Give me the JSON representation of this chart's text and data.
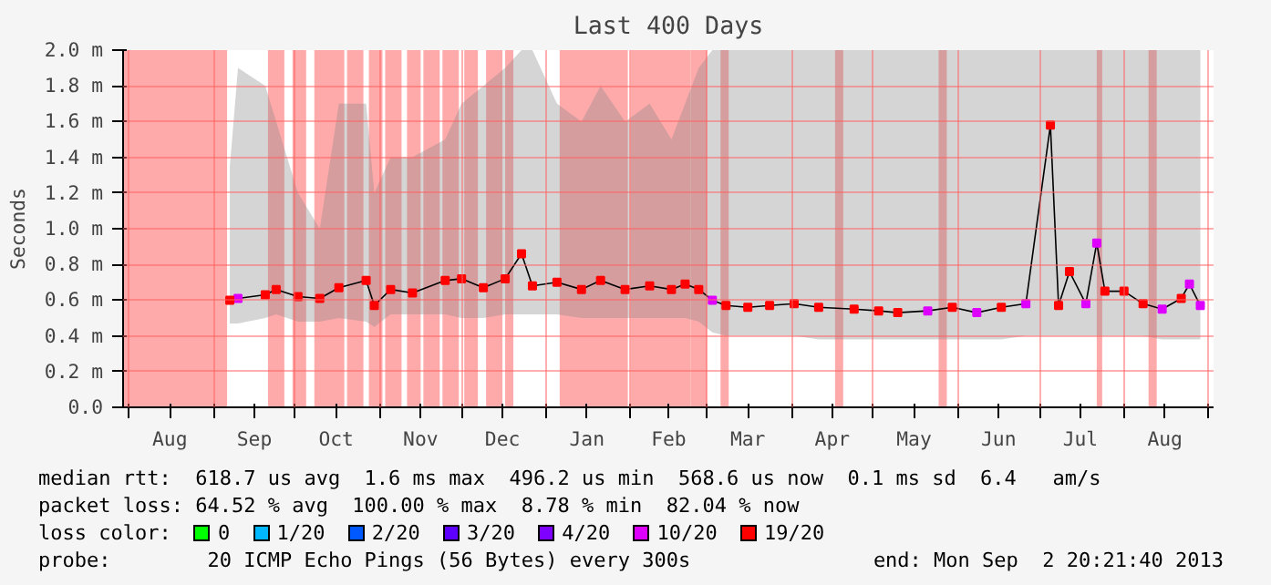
{
  "chart_data": {
    "type": "line",
    "title": "Last 400 Days",
    "ylabel": "Seconds",
    "legend_title": "loss color:",
    "legend": "bottom",
    "grid": true,
    "marker": "none",
    "line_style": "solid",
    "xlim": [
      "2012-07-29T20:21",
      "2013-09-02T20:21"
    ],
    "xticks": [
      {
        "value": "2012-08-01",
        "label": null
      },
      {
        "value": "2012-08-16",
        "label": "Aug"
      },
      {
        "value": "2012-09-01",
        "label": null
      },
      {
        "value": "2012-09-16",
        "label": "Sep"
      },
      {
        "value": "2012-10-01",
        "label": null
      },
      {
        "value": "2012-10-16",
        "label": "Oct"
      },
      {
        "value": "2012-11-01",
        "label": null
      },
      {
        "value": "2012-11-16",
        "label": "Nov"
      },
      {
        "value": "2012-12-01",
        "label": null
      },
      {
        "value": "2012-12-16",
        "label": "Dec"
      },
      {
        "value": "2013-01-01",
        "label": null
      },
      {
        "value": "2013-01-16",
        "label": "Jan"
      },
      {
        "value": "2013-02-01",
        "label": null
      },
      {
        "value": "2013-02-15",
        "label": "Feb"
      },
      {
        "value": "2013-03-01",
        "label": null
      },
      {
        "value": "2013-03-16",
        "label": "Mar"
      },
      {
        "value": "2013-04-01",
        "label": null
      },
      {
        "value": "2013-04-16",
        "label": "Apr"
      },
      {
        "value": "2013-05-01",
        "label": null
      },
      {
        "value": "2013-05-16",
        "label": "May"
      },
      {
        "value": "2013-06-01",
        "label": null
      },
      {
        "value": "2013-06-16",
        "label": "Jun"
      },
      {
        "value": "2013-07-01",
        "label": null
      },
      {
        "value": "2013-07-16",
        "label": "Jul"
      },
      {
        "value": "2013-08-01",
        "label": null
      },
      {
        "value": "2013-08-16",
        "label": "Aug"
      },
      {
        "value": "2013-09-01",
        "label": null
      }
    ],
    "ylim": [
      0,
      2.0
    ],
    "yticks": [
      {
        "value": 0,
        "label": "0.0"
      },
      {
        "value": 0.2,
        "label": "0.2 m"
      },
      {
        "value": 0.4,
        "label": "0.4 m"
      },
      {
        "value": 0.6,
        "label": "0.6 m"
      },
      {
        "value": 0.8,
        "label": "0.8 m"
      },
      {
        "value": 1.0,
        "label": "1.0 m"
      },
      {
        "value": 1.2,
        "label": "1.2 m"
      },
      {
        "value": 1.4,
        "label": "1.4 m"
      },
      {
        "value": 1.6,
        "label": "1.6 m"
      },
      {
        "value": 1.8,
        "label": "1.8 m"
      },
      {
        "value": 2.0,
        "label": "2.0 m"
      }
    ],
    "bands": [
      {
        "axis": "x",
        "from": "2012-07-29T20:21",
        "to": "2012-09-06",
        "color": "#ffaaaa"
      },
      {
        "axis": "x",
        "from": "2012-09-21",
        "to": "2012-09-27",
        "color": "#ffaaaa"
      },
      {
        "axis": "x",
        "from": "2012-09-30",
        "to": "2012-10-05",
        "color": "#ffaaaa"
      },
      {
        "axis": "x",
        "from": "2012-10-08",
        "to": "2012-10-19",
        "color": "#ffaaaa"
      },
      {
        "axis": "x",
        "from": "2012-10-20",
        "to": "2012-10-26",
        "color": "#ffaaaa"
      },
      {
        "axis": "x",
        "from": "2012-10-28",
        "to": "2012-11-02",
        "color": "#ffaaaa"
      },
      {
        "axis": "x",
        "from": "2012-11-03",
        "to": "2012-11-09",
        "color": "#ffaaaa"
      },
      {
        "axis": "x",
        "from": "2012-11-11",
        "to": "2012-11-16",
        "color": "#ffaaaa"
      },
      {
        "axis": "x",
        "from": "2012-11-17",
        "to": "2012-11-23",
        "color": "#ffaaaa"
      },
      {
        "axis": "x",
        "from": "2012-11-24",
        "to": "2012-11-30",
        "color": "#ffaaaa"
      },
      {
        "axis": "x",
        "from": "2012-12-02",
        "to": "2012-12-07",
        "color": "#ffaaaa"
      },
      {
        "axis": "x",
        "from": "2012-12-10",
        "to": "2012-12-16",
        "color": "#ffaaaa"
      },
      {
        "axis": "x",
        "from": "2012-12-17",
        "to": "2012-12-20",
        "color": "#ffaaaa"
      },
      {
        "axis": "x",
        "from": "2013-01-06",
        "to": "2013-01-31",
        "color": "#ffaaaa"
      },
      {
        "axis": "x",
        "from": "2013-02-01",
        "to": "2013-02-23",
        "color": "#ffaaaa"
      },
      {
        "axis": "x",
        "from": "2013-02-23",
        "to": "2013-03-01",
        "color": "#ffaaaa"
      },
      {
        "axis": "x",
        "from": "2013-03-06",
        "to": "2013-03-09",
        "color": "#ffaaaa"
      },
      {
        "axis": "x",
        "from": "2013-04-17",
        "to": "2013-04-20",
        "color": "#ffaaaa"
      },
      {
        "axis": "x",
        "from": "2013-05-25",
        "to": "2013-05-28",
        "color": "#ffaaaa"
      },
      {
        "axis": "x",
        "from": "2013-07-22",
        "to": "2013-07-24",
        "color": "#ffaaaa"
      },
      {
        "axis": "x",
        "from": "2013-08-10",
        "to": "2013-08-13",
        "color": "#ffaaaa"
      }
    ],
    "series": [
      {
        "color": "#000000",
        "x": [
          "2012-09-07",
          "2012-09-10",
          "2012-09-20",
          "2012-09-24",
          "2012-10-02",
          "2012-10-10",
          "2012-10-17",
          "2012-10-27",
          "2012-10-30",
          "2012-11-05",
          "2012-11-13",
          "2012-11-25",
          "2012-12-01",
          "2012-12-09",
          "2012-12-17",
          "2012-12-23",
          "2012-12-27",
          "2013-01-05",
          "2013-01-14",
          "2013-01-21",
          "2013-01-30",
          "2013-02-08",
          "2013-02-16",
          "2013-02-21",
          "2013-02-26",
          "2013-03-03",
          "2013-03-08",
          "2013-03-16",
          "2013-03-24",
          "2013-04-02",
          "2013-04-11",
          "2013-04-24",
          "2013-05-03",
          "2013-05-10",
          "2013-05-21",
          "2013-05-30",
          "2013-06-08",
          "2013-06-17",
          "2013-06-26",
          "2013-07-05",
          "2013-07-08",
          "2013-07-12",
          "2013-07-18",
          "2013-07-22",
          "2013-07-25",
          "2013-08-01",
          "2013-08-08",
          "2013-08-15",
          "2013-08-22",
          "2013-08-25",
          "2013-08-29"
        ],
        "values": [
          0.6,
          0.61,
          0.63,
          0.66,
          0.62,
          0.61,
          0.67,
          0.71,
          0.57,
          0.66,
          0.64,
          0.71,
          0.72,
          0.67,
          0.72,
          0.86,
          0.68,
          0.7,
          0.66,
          0.71,
          0.66,
          0.68,
          0.66,
          0.69,
          0.66,
          0.6,
          0.57,
          0.56,
          0.57,
          0.58,
          0.56,
          0.55,
          0.54,
          0.53,
          0.54,
          0.56,
          0.53,
          0.56,
          0.58,
          1.58,
          0.57,
          0.76,
          0.58,
          0.92,
          0.65,
          0.65,
          0.58,
          0.55,
          0.61,
          0.69,
          0.57
        ],
        "lower": [
          0.47,
          0.47,
          0.5,
          0.52,
          0.48,
          0.48,
          0.5,
          0.48,
          0.45,
          0.52,
          0.52,
          0.52,
          0.5,
          0.5,
          0.52,
          0.52,
          0.52,
          0.52,
          0.5,
          0.5,
          0.5,
          0.5,
          0.5,
          0.5,
          0.48,
          0.42,
          0.4,
          0.4,
          0.4,
          0.4,
          0.38,
          0.38,
          0.38,
          0.38,
          0.38,
          0.38,
          0.38,
          0.38,
          0.4,
          0.4,
          0.4,
          0.4,
          0.4,
          0.4,
          0.4,
          0.4,
          0.4,
          0.38,
          0.38,
          0.38,
          0.38
        ],
        "upper": [
          1.35,
          1.9,
          1.8,
          1.6,
          1.2,
          1.0,
          1.7,
          1.7,
          1.2,
          1.4,
          1.4,
          1.5,
          1.7,
          1.8,
          1.9,
          2.0,
          2.0,
          1.7,
          1.6,
          1.8,
          1.6,
          1.7,
          1.5,
          1.7,
          1.9,
          2.0,
          2.0,
          2.0,
          2.0,
          2.0,
          2.0,
          2.0,
          2.0,
          2.0,
          2.0,
          2.0,
          2.0,
          2.0,
          2.0,
          2.0,
          2.0,
          2.0,
          2.0,
          2.0,
          2.0,
          2.0,
          2.0,
          2.0,
          2.0,
          2.0,
          2.0
        ]
      },
      {
        "type": "scatter",
        "name": "0",
        "color": "#00ff00"
      },
      {
        "type": "scatter",
        "name": "1/20",
        "color": "#00b8ff"
      },
      {
        "type": "scatter",
        "name": "2/20",
        "color": "#0059ff"
      },
      {
        "type": "scatter",
        "name": "3/20",
        "color": "#5e00ff"
      },
      {
        "type": "scatter",
        "name": "4/20",
        "color": "#7e00ff"
      },
      {
        "type": "scatter",
        "name": "10/20",
        "color": "#dd00ff",
        "marker": "square",
        "x": [
          "2012-09-10",
          "2013-03-03",
          "2013-05-21",
          "2013-06-08",
          "2013-06-26",
          "2013-07-18",
          "2013-07-22",
          "2013-08-15",
          "2013-08-25",
          "2013-08-29"
        ],
        "values": [
          0.61,
          0.6,
          0.54,
          0.53,
          0.58,
          0.58,
          0.92,
          0.55,
          0.69,
          0.57
        ]
      },
      {
        "type": "scatter",
        "name": "19/20",
        "color": "#ff0000",
        "marker": "square",
        "x": [
          "2012-09-07",
          "2012-09-20",
          "2012-09-24",
          "2012-10-02",
          "2012-10-10",
          "2012-10-17",
          "2012-10-27",
          "2012-10-30",
          "2012-11-05",
          "2012-11-13",
          "2012-11-25",
          "2012-12-01",
          "2012-12-09",
          "2012-12-17",
          "2012-12-23",
          "2012-12-27",
          "2013-01-05",
          "2013-01-14",
          "2013-01-21",
          "2013-01-30",
          "2013-02-08",
          "2013-02-16",
          "2013-02-21",
          "2013-02-26",
          "2013-03-08",
          "2013-03-16",
          "2013-03-24",
          "2013-04-02",
          "2013-04-11",
          "2013-04-24",
          "2013-05-03",
          "2013-05-10",
          "2013-05-30",
          "2013-06-17",
          "2013-07-05",
          "2013-07-08",
          "2013-07-12",
          "2013-07-25",
          "2013-08-01",
          "2013-08-08",
          "2013-08-22"
        ],
        "values": [
          0.6,
          0.63,
          0.66,
          0.62,
          0.61,
          0.67,
          0.71,
          0.57,
          0.66,
          0.64,
          0.71,
          0.72,
          0.67,
          0.72,
          0.86,
          0.68,
          0.7,
          0.66,
          0.71,
          0.66,
          0.68,
          0.66,
          0.69,
          0.66,
          0.57,
          0.56,
          0.57,
          0.58,
          0.56,
          0.55,
          0.54,
          0.53,
          0.56,
          0.56,
          1.58,
          0.57,
          0.76,
          0.65,
          0.65,
          0.58,
          0.61
        ]
      }
    ],
    "annotations": [
      "median rtt:  618.7 us avg  1.6 ms max  496.2 us min  568.6 us now  0.1 ms sd  6.4   am/s",
      "packet loss: 64.52 % avg  100.00 % max  8.78 % min  82.04 % now",
      "probe:        20 ICMP Echo Pings (56 Bytes) every 300s",
      "end: Mon Sep  2 20:21:40 2013"
    ]
  }
}
